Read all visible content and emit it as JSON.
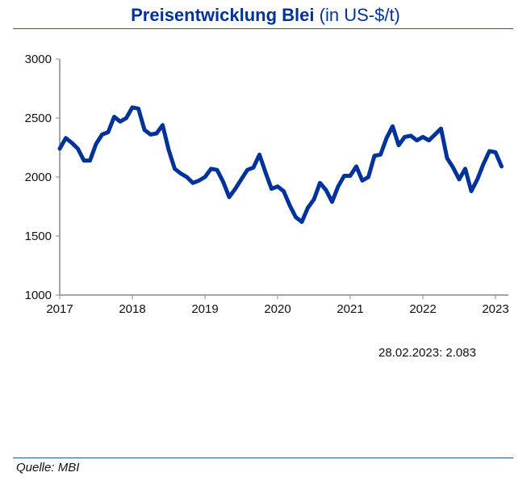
{
  "chart_data": {
    "type": "line",
    "title": "Preisentwicklung Blei",
    "subtitle": "(in US-$/t)",
    "x_ticks": [
      "2017",
      "2018",
      "2019",
      "2020",
      "2021",
      "2022",
      "2023"
    ],
    "y_ticks": [
      "1000",
      "1500",
      "2000",
      "2500",
      "3000"
    ],
    "ylim": [
      1000,
      3000
    ],
    "xlim": [
      "2017-01",
      "2023-02"
    ],
    "grid": false,
    "line_color": "#003399",
    "series": [
      {
        "start": "2017-01",
        "frequency": "monthly",
        "values": [
          2240,
          2330,
          2290,
          2240,
          2140,
          2140,
          2280,
          2360,
          2380,
          2510,
          2470,
          2500,
          2590,
          2580,
          2400,
          2360,
          2370,
          2440,
          2230,
          2070,
          2030,
          2000,
          1950,
          1970,
          2000,
          2070,
          2060,
          1960,
          1830,
          1900,
          1980,
          2060,
          2080,
          2190,
          2040,
          1900,
          1920,
          1880,
          1760,
          1660,
          1620,
          1740,
          1810,
          1950,
          1890,
          1790,
          1920,
          2010,
          2010,
          2090,
          1970,
          2000,
          2180,
          2190,
          2330,
          2430,
          2270,
          2340,
          2350,
          2310,
          2340,
          2310,
          2360,
          2410,
          2160,
          2080,
          1980,
          2070,
          1880,
          1980,
          2110,
          2220,
          2210,
          2090
        ]
      }
    ],
    "annotation": "28.02.2023: 2.083"
  },
  "source": "Quelle: MBI"
}
